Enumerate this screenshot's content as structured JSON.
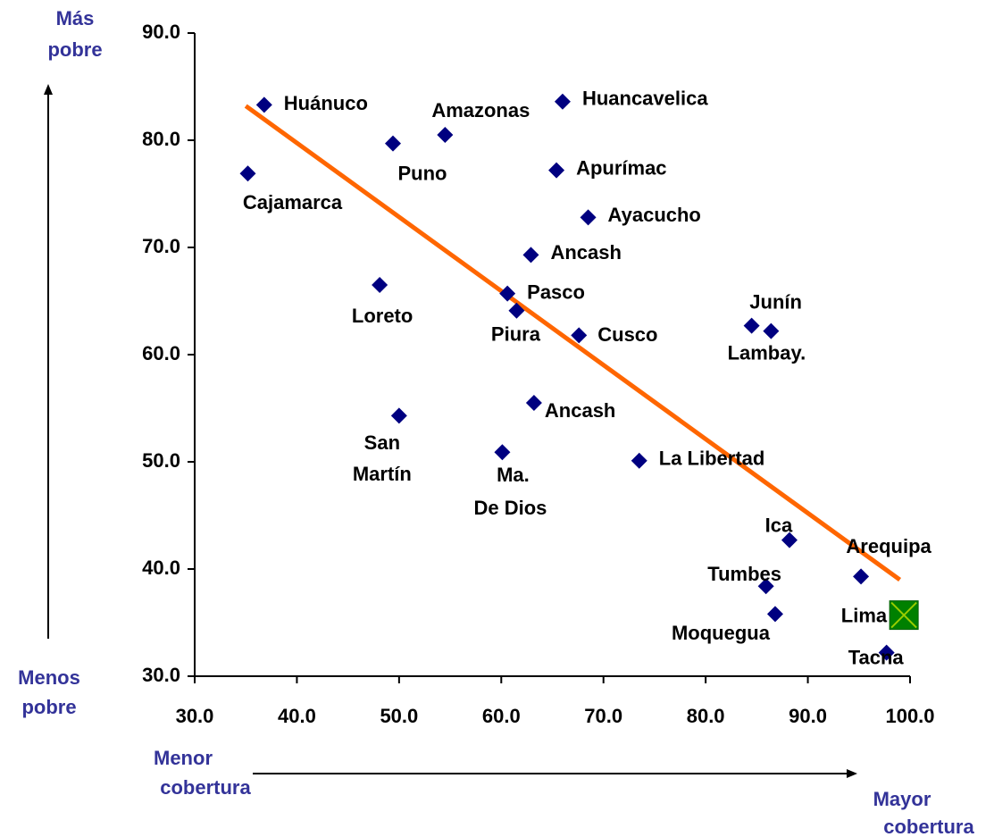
{
  "chart_data": {
    "type": "scatter",
    "xlim": [
      30,
      100
    ],
    "ylim": [
      30,
      90
    ],
    "xticks": [
      {
        "value": 30,
        "label": "30.0"
      },
      {
        "value": 40,
        "label": "40.0"
      },
      {
        "value": 50,
        "label": "50.0"
      },
      {
        "value": 60,
        "label": "60.0"
      },
      {
        "value": 70,
        "label": "70.0"
      },
      {
        "value": 80,
        "label": "80.0"
      },
      {
        "value": 90,
        "label": "90.0"
      },
      {
        "value": 100,
        "label": "100.0"
      }
    ],
    "yticks": [
      {
        "value": 30,
        "label": "30.0"
      },
      {
        "value": 40,
        "label": "40.0"
      },
      {
        "value": 50,
        "label": "50.0"
      },
      {
        "value": 60,
        "label": "60.0"
      },
      {
        "value": 70,
        "label": "70.0"
      },
      {
        "value": 80,
        "label": "80.0"
      },
      {
        "value": 90,
        "label": "90.0"
      }
    ],
    "annotations": {
      "y_top": [
        "Más",
        "pobre"
      ],
      "y_bottom": [
        "Menos",
        "pobre"
      ],
      "x_left": [
        "Menor",
        "cobertura"
      ],
      "x_right": [
        "Mayor",
        "cobertura"
      ]
    },
    "series": [
      {
        "color": "#000080",
        "marker": "diamond",
        "points": [
          {
            "label": [
              "Huánuco"
            ],
            "x": 36.8,
            "y": 83.3
          },
          {
            "label": [
              "Amazonas"
            ],
            "x": 54.5,
            "y": 80.5
          },
          {
            "label": [
              "Huancavelica"
            ],
            "x": 66.0,
            "y": 83.6
          },
          {
            "label": [
              "Puno"
            ],
            "x": 49.4,
            "y": 79.7
          },
          {
            "label": [
              "Cajamarca"
            ],
            "x": 35.2,
            "y": 76.9
          },
          {
            "label": [
              "Apurímac"
            ],
            "x": 65.4,
            "y": 77.2
          },
          {
            "label": [
              "Ayacucho"
            ],
            "x": 68.5,
            "y": 72.8
          },
          {
            "label": [
              "Ancash"
            ],
            "x": 62.9,
            "y": 69.3
          },
          {
            "label": [
              "Loreto"
            ],
            "x": 48.1,
            "y": 66.5
          },
          {
            "label": [
              "Pasco"
            ],
            "x": 60.6,
            "y": 65.7
          },
          {
            "label": [
              "Piura"
            ],
            "x": 61.5,
            "y": 64.1
          },
          {
            "label": [
              "Cusco"
            ],
            "x": 67.6,
            "y": 61.8
          },
          {
            "label": [
              "Junín"
            ],
            "x": 84.5,
            "y": 62.7
          },
          {
            "label": [
              "Lambay."
            ],
            "x": 86.4,
            "y": 62.2
          },
          {
            "label": [
              "Ancash"
            ],
            "x": 63.2,
            "y": 55.5
          },
          {
            "label": [
              "San",
              "Martín"
            ],
            "x": 50.0,
            "y": 54.3
          },
          {
            "label": [
              "Ma.",
              "De Dios"
            ],
            "x": 60.1,
            "y": 50.9
          },
          {
            "label": [
              "La Libertad"
            ],
            "x": 73.5,
            "y": 50.1
          },
          {
            "label": [
              "Ica"
            ],
            "x": 88.2,
            "y": 42.7
          },
          {
            "label": [
              "Tumbes"
            ],
            "x": 85.9,
            "y": 38.4
          },
          {
            "label": [
              "Arequipa"
            ],
            "x": 95.2,
            "y": 39.3
          },
          {
            "label": [
              "Moquegua"
            ],
            "x": 86.8,
            "y": 35.8
          },
          {
            "label": [
              "Tacna"
            ],
            "x": 97.7,
            "y": 32.2
          }
        ]
      },
      {
        "color": "#008000",
        "marker": "square-x",
        "points": [
          {
            "label": [
              "Lima"
            ],
            "x": 99.4,
            "y": 35.7
          }
        ]
      }
    ],
    "trendline": {
      "color": "#ff6600",
      "x": [
        35.0,
        99.0
      ],
      "y": [
        83.2,
        39.0
      ]
    }
  }
}
